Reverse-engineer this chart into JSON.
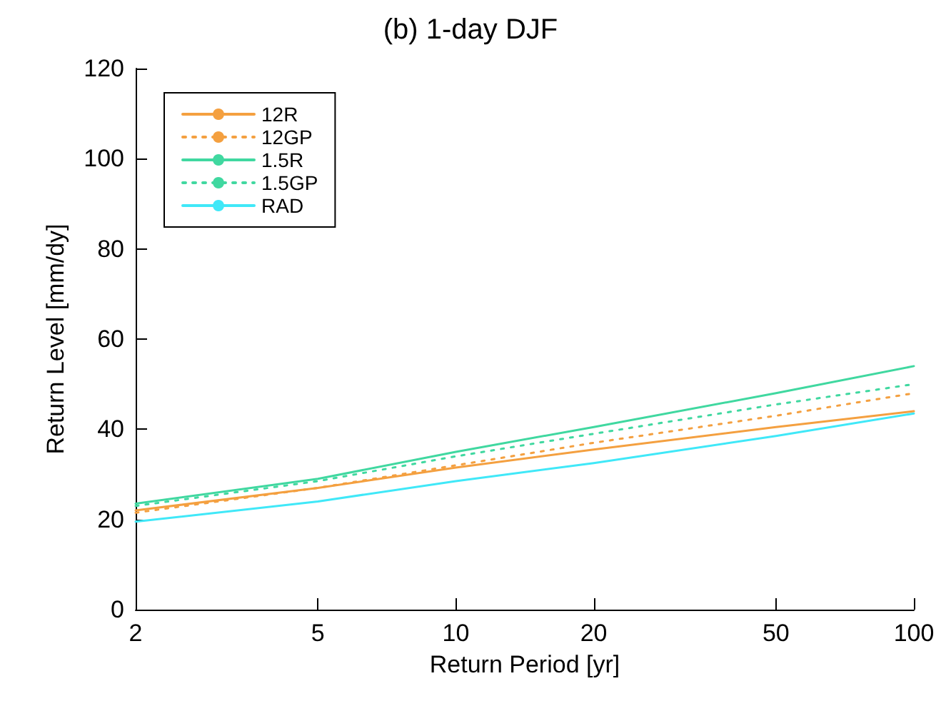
{
  "chart_data": {
    "type": "line",
    "title": "(b) 1-day DJF",
    "xlabel": "Return Period [yr]",
    "ylabel": "Return Level [mm/dy]",
    "log": "x",
    "xlim": [
      2,
      100
    ],
    "xticks": [
      2,
      5,
      10,
      20,
      50,
      100
    ],
    "ylim": [
      0,
      120
    ],
    "yticks": [
      0,
      20,
      40,
      60,
      80,
      100,
      120
    ],
    "grid": false,
    "legend": "top left",
    "marker": "none",
    "x": [
      2,
      5,
      10,
      20,
      50,
      100
    ],
    "series": [
      {
        "name": "12R",
        "color": "#f4a040",
        "line_style": "solid",
        "values": [
          22,
          27,
          31.5,
          35.5,
          40.5,
          44
        ]
      },
      {
        "name": "12GP",
        "color": "#f4a040",
        "line_style": "dotted",
        "values": [
          21.5,
          27,
          32,
          37,
          43,
          48
        ]
      },
      {
        "name": "1.5R",
        "color": "#40d8a0",
        "line_style": "solid",
        "values": [
          23.5,
          29,
          35,
          40.5,
          48,
          54
        ]
      },
      {
        "name": "1.5GP",
        "color": "#40d8a0",
        "line_style": "dotted",
        "values": [
          23,
          28.5,
          34,
          39,
          45.5,
          50
        ]
      },
      {
        "name": "RAD",
        "color": "#40e8f8",
        "line_style": "solid",
        "values": [
          19.5,
          24,
          28.5,
          32.5,
          38.5,
          43.5
        ]
      }
    ]
  }
}
